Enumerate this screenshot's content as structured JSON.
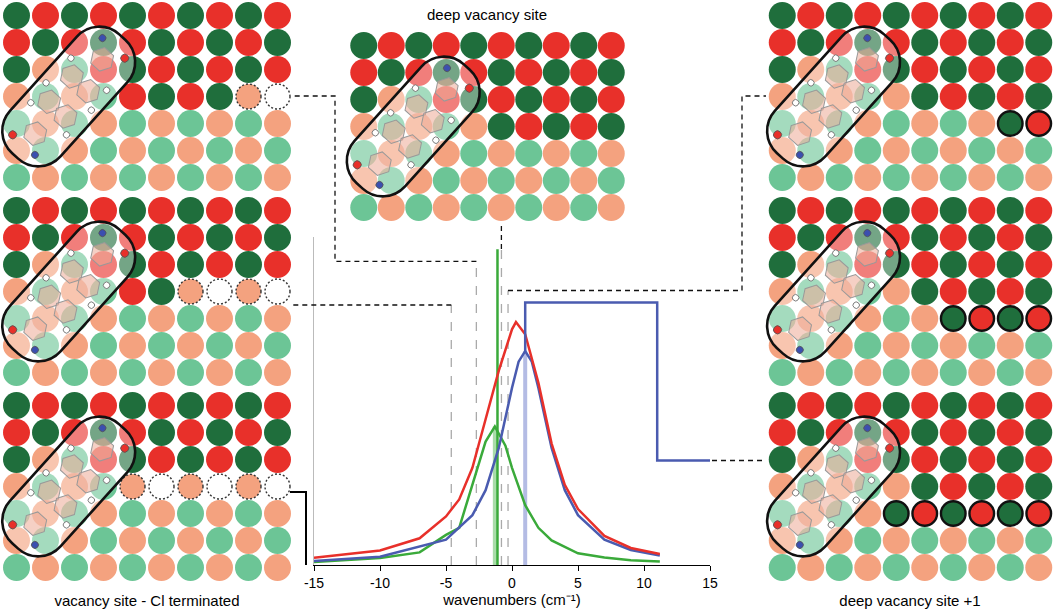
{
  "chart_data": {
    "type": "line",
    "x_label": "wavenumbers (cm⁻¹)",
    "xlim": [
      -15,
      15
    ],
    "xticks": [
      -15,
      -10,
      -5,
      0,
      5,
      10,
      15
    ],
    "ylim": [
      0,
      1.35
    ],
    "tick_labels": "x",
    "grid": false,
    "series": [
      {
        "type": "stick",
        "color": "#b4bce4",
        "line_style": "solid",
        "x": [
          1
        ],
        "values": [
          0.88
        ]
      },
      {
        "type": "stick",
        "color": "#a9dca9",
        "line_style": "solid",
        "x": [
          -1.3
        ],
        "values": [
          0.57
        ]
      },
      {
        "type": "stick",
        "color": "#aaaaaa",
        "line_style": "dashed",
        "x": [
          -4.6,
          -2.7,
          -0.8,
          -0.3
        ],
        "values": [
          1.07,
          1.25,
          1.3,
          1.13
        ]
      },
      {
        "type": "stick",
        "color": "#3aaa3a",
        "line_style": "solid",
        "x": [
          -1.1
        ],
        "values": [
          1.3
        ]
      },
      {
        "type": "line",
        "color": "#3aaa3a",
        "line_style": "solid",
        "x": [
          -15,
          -10,
          -7,
          -5,
          -4,
          -3,
          -2,
          -1.3,
          -0.5,
          0,
          1,
          2,
          3,
          5,
          7,
          9,
          11.2
        ],
        "values": [
          0.012,
          0.029,
          0.052,
          0.124,
          0.153,
          0.331,
          0.508,
          0.57,
          0.491,
          0.4,
          0.246,
          0.153,
          0.101,
          0.048,
          0.031,
          0.02,
          0.014
        ]
      },
      {
        "type": "line",
        "color": "#4a5bb0",
        "line_style": "solid",
        "x": [
          -15,
          -10,
          -5,
          -3,
          -2,
          -1,
          0,
          0.5,
          1,
          1.5,
          2,
          3,
          4,
          5,
          7,
          9,
          11.2
        ],
        "values": [
          0.016,
          0.034,
          0.104,
          0.205,
          0.308,
          0.482,
          0.729,
          0.837,
          0.88,
          0.837,
          0.729,
          0.482,
          0.308,
          0.205,
          0.104,
          0.062,
          0.039
        ]
      },
      {
        "type": "line",
        "color": "#e8302a",
        "line_style": "solid",
        "x": [
          -15,
          -10,
          -7,
          -5,
          -4,
          -3,
          -2,
          -1,
          0,
          0.3,
          1,
          2,
          3,
          4,
          5,
          7,
          9,
          11.2
        ],
        "values": [
          0.03,
          0.06,
          0.11,
          0.2,
          0.27,
          0.4,
          0.6,
          0.8,
          0.97,
          1.0,
          0.95,
          0.75,
          0.5,
          0.33,
          0.23,
          0.12,
          0.07,
          0.045
        ]
      },
      {
        "type": "line",
        "color": "#4a5bb0",
        "line_style": "solid",
        "x": [
          1,
          1,
          11,
          11,
          15
        ],
        "values": [
          0.88,
          1.08,
          1.08,
          0.43,
          0.43
        ]
      }
    ]
  },
  "panels": {
    "left": {
      "label": "vacancy site - Cl terminated"
    },
    "center": {
      "label": "deep vacancy site"
    },
    "right": {
      "label": "deep vacancy site +1"
    }
  }
}
